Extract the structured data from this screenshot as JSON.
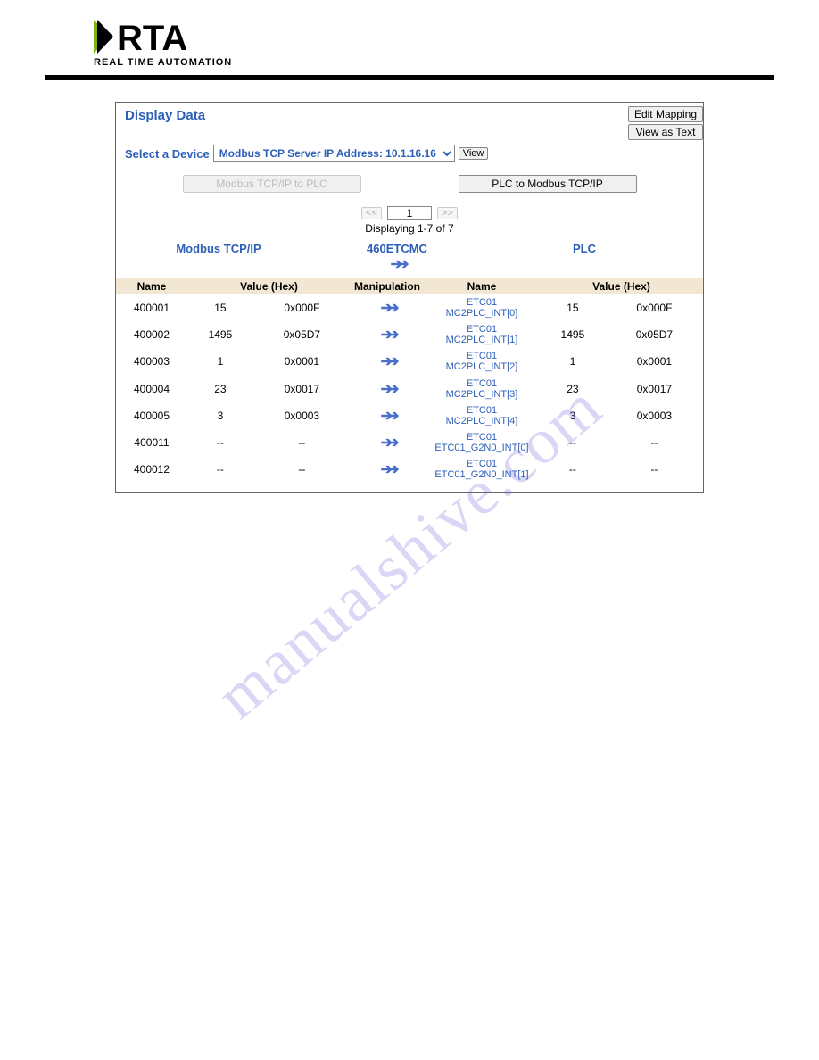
{
  "logo": {
    "text": "RTA",
    "subtext": "REAL TIME AUTOMATION",
    "accent_color": "#7cb518",
    "text_color": "#000000"
  },
  "panel": {
    "title": "Display Data",
    "buttons": {
      "edit_mapping": "Edit Mapping",
      "view_as_text": "View as Text"
    },
    "device": {
      "label": "Select a Device",
      "selected": "Modbus TCP Server IP Address: 10.1.16.16",
      "view_btn": "View"
    },
    "direction": {
      "left_label": "Modbus TCP/IP to PLC",
      "right_label": "PLC to Modbus TCP/IP"
    },
    "pager": {
      "prev": "<<",
      "next": ">>",
      "current_page": "1",
      "info": "Displaying 1-7 of 7"
    },
    "sections": {
      "left": "Modbus TCP/IP",
      "center": "460ETCMC",
      "right": "PLC"
    },
    "columns": {
      "name_left": "Name",
      "value_hex_left": "Value (Hex)",
      "manipulation": "Manipulation",
      "name_right": "Name",
      "value_hex_right": "Value (Hex)"
    },
    "rows": [
      {
        "addr": "400001",
        "val": "15",
        "hex": "0x000F",
        "rname1": "ETC01",
        "rname2": "MC2PLC_INT[0]",
        "rval": "15",
        "rhex": "0x000F"
      },
      {
        "addr": "400002",
        "val": "1495",
        "hex": "0x05D7",
        "rname1": "ETC01",
        "rname2": "MC2PLC_INT[1]",
        "rval": "1495",
        "rhex": "0x05D7"
      },
      {
        "addr": "400003",
        "val": "1",
        "hex": "0x0001",
        "rname1": "ETC01",
        "rname2": "MC2PLC_INT[2]",
        "rval": "1",
        "rhex": "0x0001"
      },
      {
        "addr": "400004",
        "val": "23",
        "hex": "0x0017",
        "rname1": "ETC01",
        "rname2": "MC2PLC_INT[3]",
        "rval": "23",
        "rhex": "0x0017"
      },
      {
        "addr": "400005",
        "val": "3",
        "hex": "0x0003",
        "rname1": "ETC01",
        "rname2": "MC2PLC_INT[4]",
        "rval": "3",
        "rhex": "0x0003"
      },
      {
        "addr": "400011",
        "val": "--",
        "hex": "--",
        "rname1": "ETC01",
        "rname2": "ETC01_G2N0_INT[0]",
        "rval": "--",
        "rhex": "--"
      },
      {
        "addr": "400012",
        "val": "--",
        "hex": "--",
        "rname1": "ETC01",
        "rname2": "ETC01_G2N0_INT[1]",
        "rval": "--",
        "rhex": "--"
      }
    ]
  },
  "watermark": "manualshive.com"
}
